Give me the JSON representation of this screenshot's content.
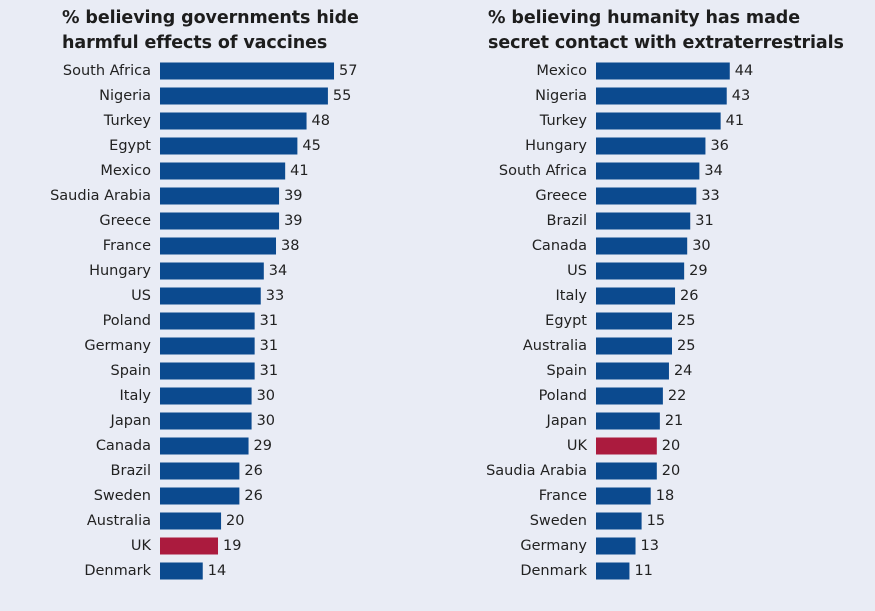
{
  "chart_data": [
    {
      "type": "bar",
      "orientation": "horizontal",
      "title": "% believing governments hide\nharmful effects of vaccines",
      "categories": [
        "South Africa",
        "Nigeria",
        "Turkey",
        "Egypt",
        "Mexico",
        "Saudia Arabia",
        "Greece",
        "France",
        "Hungary",
        "US",
        "Poland",
        "Germany",
        "Spain",
        "Italy",
        "Japan",
        "Canada",
        "Brazil",
        "Sweden",
        "Australia",
        "UK",
        "Denmark"
      ],
      "values": [
        57,
        55,
        48,
        45,
        41,
        39,
        39,
        38,
        34,
        33,
        31,
        31,
        31,
        30,
        30,
        29,
        26,
        26,
        20,
        19,
        14
      ],
      "highlight": "UK",
      "xlim": [
        0,
        60
      ]
    },
    {
      "type": "bar",
      "orientation": "horizontal",
      "title": "% believing humanity has made\nsecret contact with extraterrestrials",
      "categories": [
        "Mexico",
        "Nigeria",
        "Turkey",
        "Hungary",
        "South Africa",
        "Greece",
        "Brazil",
        "Canada",
        "US",
        "Italy",
        "Egypt",
        "Australia",
        "Spain",
        "Poland",
        "Japan",
        "UK",
        "Saudia Arabia",
        "France",
        "Sweden",
        "Germany",
        "Denmark"
      ],
      "values": [
        44,
        43,
        41,
        36,
        34,
        33,
        31,
        30,
        29,
        26,
        25,
        25,
        24,
        22,
        21,
        20,
        20,
        18,
        15,
        13,
        11
      ],
      "highlight": "UK",
      "xlim": [
        0,
        60
      ]
    }
  ],
  "colors": {
    "bar": "#0b4a8f",
    "highlight": "#ab1b3e",
    "background": "#e9ecf5",
    "text": "#222222"
  }
}
